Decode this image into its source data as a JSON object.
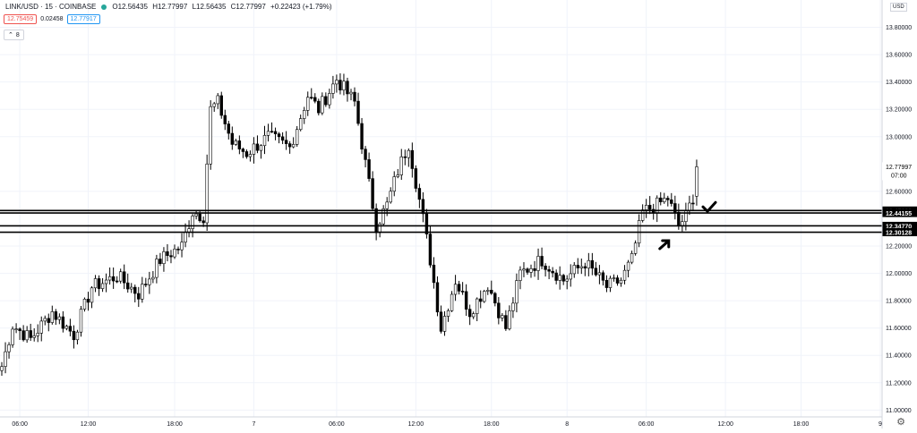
{
  "legend": {
    "symbol": "LINK/USD · 15 · COINBASE",
    "open": "O12.56435",
    "high": "H12.77997",
    "low": "L12.56435",
    "close": "C12.77997",
    "change": "+0.22423 (+1.79%)"
  },
  "quote": {
    "sell": "12.75459",
    "spread": "0.02458",
    "buy": "12.77917"
  },
  "indicators_toggle": {
    "count": "8"
  },
  "currency": "USD",
  "colors": {
    "bull": "#ffffff",
    "bear": "#000000",
    "wick": "#000000",
    "grid": "#f0f3fa",
    "axis_text": "#131722",
    "last_price_box": "#ffffff"
  },
  "chart_data": {
    "type": "candlestick",
    "ylim": [
      10.95,
      14.0
    ],
    "y_ticks": [
      {
        "value": 13.8,
        "label": "13.80000"
      },
      {
        "value": 13.6,
        "label": "13.60000"
      },
      {
        "value": 13.4,
        "label": "13.40000"
      },
      {
        "value": 13.2,
        "label": "13.20000"
      },
      {
        "value": 13.0,
        "label": "13.00000"
      },
      {
        "value": 12.6,
        "label": "12.60000"
      },
      {
        "value": 12.2,
        "label": "12.20000"
      },
      {
        "value": 12.0,
        "label": "12.00000"
      },
      {
        "value": 11.8,
        "label": "11.80000"
      },
      {
        "value": 11.6,
        "label": "11.60000"
      },
      {
        "value": 11.4,
        "label": "11.40000"
      },
      {
        "value": 11.2,
        "label": "11.20000"
      },
      {
        "value": 11.0,
        "label": "11.00000"
      }
    ],
    "x_ticks": [
      {
        "index": 5,
        "label": "06:00"
      },
      {
        "index": 24,
        "label": "12:00"
      },
      {
        "index": 48,
        "label": "18:00"
      },
      {
        "index": 70,
        "label": "7"
      },
      {
        "index": 93,
        "label": "06:00"
      },
      {
        "index": 115,
        "label": "12:00"
      },
      {
        "index": 136,
        "label": "18:00"
      },
      {
        "index": 157,
        "label": "8"
      },
      {
        "index": 179,
        "label": "06:00"
      },
      {
        "index": 201,
        "label": "12:00"
      },
      {
        "index": 222,
        "label": "18:00"
      },
      {
        "index": 244,
        "label": "9"
      }
    ],
    "horizontal_lines": [
      {
        "value": 12.45999,
        "label": "12.45999"
      },
      {
        "value": 12.44155,
        "label": "12.44155"
      },
      {
        "value": 12.3477,
        "label": "12.34770"
      },
      {
        "value": 12.30128,
        "label": "12.30128"
      }
    ],
    "last_price": {
      "value": 12.77997,
      "label": "12.77997",
      "countdown": "07:00"
    },
    "annotations": [
      {
        "shape": "checkmark",
        "index": 196,
        "value": 12.48
      },
      {
        "shape": "arrow-up-right",
        "index": 184,
        "value": 12.22
      }
    ],
    "anchors": [
      {
        "i": 0,
        "p": 11.32
      },
      {
        "i": 3,
        "p": 11.62
      },
      {
        "i": 8,
        "p": 11.52
      },
      {
        "i": 14,
        "p": 11.72
      },
      {
        "i": 20,
        "p": 11.55
      },
      {
        "i": 25,
        "p": 11.9
      },
      {
        "i": 32,
        "p": 11.98
      },
      {
        "i": 38,
        "p": 11.85
      },
      {
        "i": 44,
        "p": 12.1
      },
      {
        "i": 50,
        "p": 12.2
      },
      {
        "i": 53,
        "p": 12.45
      },
      {
        "i": 56,
        "p": 12.42
      },
      {
        "i": 58,
        "p": 13.2
      },
      {
        "i": 60,
        "p": 13.25
      },
      {
        "i": 64,
        "p": 12.95
      },
      {
        "i": 68,
        "p": 12.88
      },
      {
        "i": 74,
        "p": 13.0
      },
      {
        "i": 80,
        "p": 12.92
      },
      {
        "i": 85,
        "p": 13.3
      },
      {
        "i": 88,
        "p": 13.2
      },
      {
        "i": 93,
        "p": 13.42
      },
      {
        "i": 98,
        "p": 13.25
      },
      {
        "i": 101,
        "p": 12.8
      },
      {
        "i": 104,
        "p": 12.35
      },
      {
        "i": 107,
        "p": 12.5
      },
      {
        "i": 110,
        "p": 12.75
      },
      {
        "i": 113,
        "p": 12.95
      },
      {
        "i": 117,
        "p": 12.4
      },
      {
        "i": 119,
        "p": 12.1
      },
      {
        "i": 122,
        "p": 11.6
      },
      {
        "i": 126,
        "p": 11.95
      },
      {
        "i": 130,
        "p": 11.72
      },
      {
        "i": 135,
        "p": 11.92
      },
      {
        "i": 140,
        "p": 11.6
      },
      {
        "i": 144,
        "p": 12.0
      },
      {
        "i": 150,
        "p": 12.1
      },
      {
        "i": 156,
        "p": 11.95
      },
      {
        "i": 162,
        "p": 12.08
      },
      {
        "i": 168,
        "p": 11.9
      },
      {
        "i": 172,
        "p": 11.95
      },
      {
        "i": 175,
        "p": 12.1
      },
      {
        "i": 178,
        "p": 12.45
      },
      {
        "i": 182,
        "p": 12.5
      },
      {
        "i": 185,
        "p": 12.55
      },
      {
        "i": 188,
        "p": 12.35
      },
      {
        "i": 190,
        "p": 12.42
      },
      {
        "i": 192,
        "p": 12.56
      },
      {
        "i": 193,
        "p": 12.78
      }
    ]
  }
}
